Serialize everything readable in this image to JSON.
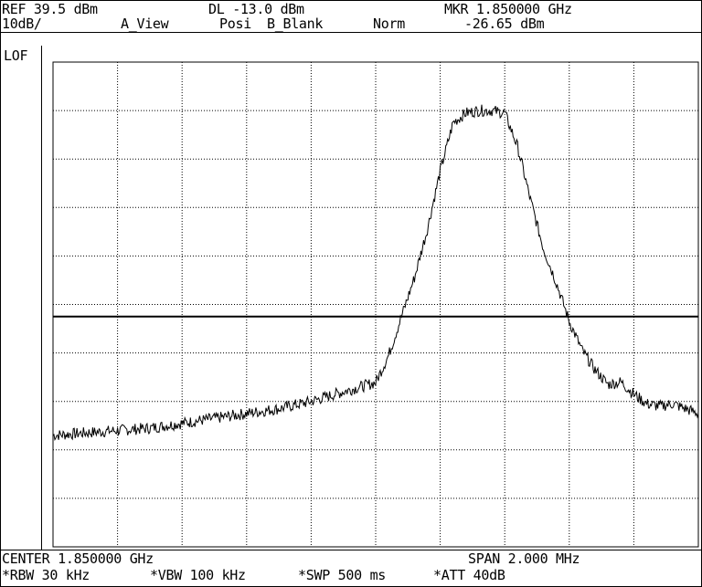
{
  "header": {
    "ref": "REF 39.5 dBm",
    "dl": "DL -13.0 dBm",
    "mkr": "MKR 1.850000 GHz",
    "scale": "10dB/",
    "a_view": "A_View",
    "posi": "Posi",
    "b_blank": "B_Blank",
    "norm": "Norm",
    "mkr_level": "-26.65 dBm"
  },
  "side": {
    "lof": "LOF"
  },
  "footer": {
    "center": "CENTER 1.850000 GHz",
    "span": "SPAN 2.000 MHz",
    "rbw": "*RBW 30 kHz",
    "vbw": "*VBW 100 kHz",
    "swp": "*SWP 500 ms",
    "att": "*ATT 40dB"
  },
  "colors": {
    "trace": "#000000",
    "grid": "#000000",
    "background": "#ffffff"
  },
  "chart_data": {
    "type": "line",
    "x_unit": "MHz offset from center",
    "y_unit": "dBm",
    "xlim": [
      -1.0,
      1.0
    ],
    "ylim": [
      -60.5,
      39.5
    ],
    "grid_divisions": [
      10,
      10
    ],
    "display_line": -13.0,
    "series": [
      {
        "x": [
          -1.0,
          -0.9,
          -0.8,
          -0.7,
          -0.6,
          -0.5,
          -0.4,
          -0.3,
          -0.2,
          -0.1,
          0.0,
          0.04,
          0.08,
          0.12,
          0.16,
          0.2,
          0.24,
          0.28,
          0.32,
          0.36,
          0.4,
          0.44,
          0.48,
          0.52,
          0.56,
          0.6,
          0.64,
          0.68,
          0.72,
          0.76,
          0.8,
          0.84,
          0.88,
          0.92,
          0.96,
          1.0
        ],
        "y": [
          -37.5,
          -37.0,
          -36.5,
          -36.0,
          -35.0,
          -34.0,
          -33.0,
          -32.0,
          -30.5,
          -28.5,
          -26.6,
          -21.0,
          -13.0,
          -5.0,
          5.0,
          17.0,
          27.0,
          29.0,
          29.5,
          29.5,
          29.0,
          22.0,
          11.0,
          1.0,
          -6.0,
          -14.0,
          -20.0,
          -24.0,
          -27.0,
          -26.5,
          -29.0,
          -31.0,
          -31.5,
          -31.0,
          -32.0,
          -33.0
        ]
      }
    ]
  }
}
